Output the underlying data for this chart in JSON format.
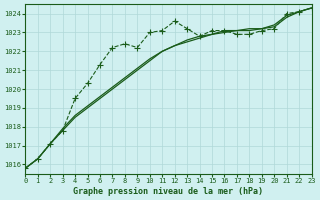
{
  "title": "Graphe pression niveau de la mer (hPa)",
  "bg_color": "#d0f0f0",
  "grid_color": "#b0d8d8",
  "line_color": "#1a5c1a",
  "xlim": [
    0,
    23
  ],
  "ylim": [
    1015.5,
    1024.5
  ],
  "yticks": [
    1016,
    1017,
    1018,
    1019,
    1020,
    1021,
    1022,
    1023,
    1024
  ],
  "xticks": [
    0,
    1,
    2,
    3,
    4,
    5,
    6,
    7,
    8,
    9,
    10,
    11,
    12,
    13,
    14,
    15,
    16,
    17,
    18,
    19,
    20,
    21,
    22,
    23
  ],
  "series1": [
    1015.8,
    1016.3,
    1017.1,
    1017.8,
    1019.5,
    1020.3,
    1021.3,
    1022.2,
    1022.4,
    1022.2,
    1023.0,
    1023.1,
    1023.6,
    1023.2,
    1022.8,
    1023.1,
    1023.1,
    1022.9,
    1022.9,
    1023.1,
    1023.2,
    1024.0,
    1024.1,
    1024.3
  ],
  "series2": [
    1015.8,
    1016.3,
    1017.1,
    1017.8,
    1018.5,
    1019.0,
    1019.5,
    1020.0,
    1020.5,
    1021.0,
    1021.5,
    1022.0,
    1022.3,
    1022.5,
    1022.7,
    1022.9,
    1023.0,
    1023.1,
    1023.1,
    1023.2,
    1023.3,
    1023.8,
    1024.1,
    1024.3
  ],
  "series3": [
    1015.8,
    1016.3,
    1017.1,
    1017.9,
    1018.6,
    1019.1,
    1019.6,
    1020.1,
    1020.6,
    1021.1,
    1021.6,
    1022.0,
    1022.3,
    1022.6,
    1022.8,
    1022.9,
    1023.1,
    1023.1,
    1023.2,
    1023.2,
    1023.4,
    1023.9,
    1024.1,
    1024.3
  ]
}
